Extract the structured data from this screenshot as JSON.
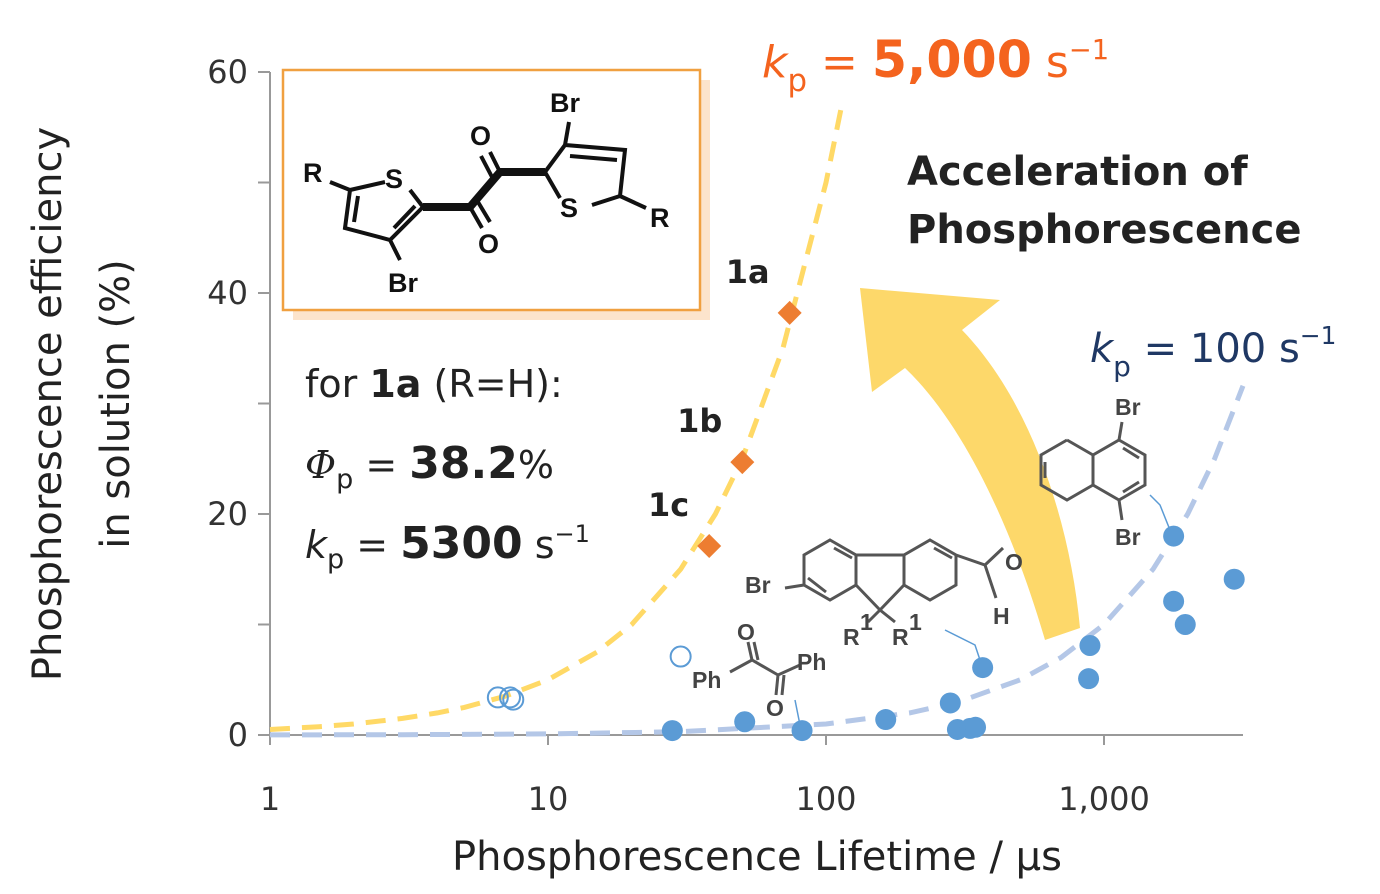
{
  "chart_data": {
    "type": "scatter",
    "xscale": "log",
    "xlabel": "Phosphorescence Lifetime / μs",
    "ylabel": [
      "Phosphorescence efficiency",
      "in solution (%)"
    ],
    "xlim": [
      1,
      3162
    ],
    "ylim": [
      0,
      60
    ],
    "xticks": [
      1,
      10,
      100,
      {
        "value": 1000,
        "label": "1,000"
      }
    ],
    "yticks": [
      0,
      20,
      40,
      60
    ],
    "yminorticks": [
      10,
      30,
      50
    ],
    "series": [
      {
        "kind": "line",
        "style": "dashed",
        "color": "#FFD966",
        "x": [
          1,
          1.5,
          2,
          3,
          4,
          5,
          7,
          10,
          15,
          20,
          30,
          40,
          50,
          70,
          100,
          115
        ],
        "values": [
          0.5,
          0.75,
          1,
          1.5,
          2,
          2.5,
          3.5,
          5,
          7.5,
          10,
          15,
          20,
          25,
          35,
          50,
          57.5
        ]
      },
      {
        "kind": "line",
        "style": "dashed",
        "color": "#B4C7E7",
        "x": [
          1,
          3,
          10,
          30,
          100,
          200,
          300,
          500,
          700,
          1000,
          1500,
          2000,
          2500,
          3162
        ],
        "values": [
          0.01,
          0.03,
          0.1,
          0.3,
          1,
          2,
          3,
          5,
          7,
          10,
          15,
          20,
          25,
          31.6
        ]
      },
      {
        "kind": "points",
        "marker": "open-circle",
        "color": "#5B9BD5",
        "x": [
          30,
          6.6,
          7.3,
          7.5
        ],
        "values": [
          7.1,
          3.4,
          3.4,
          3.2
        ]
      },
      {
        "kind": "points",
        "marker": "circle",
        "color": "#5B9BD5",
        "x": [
          28,
          51,
          82,
          164,
          280,
          297,
          330,
          345,
          366,
          890,
          880,
          1780,
          1780,
          1960,
          2940
        ],
        "values": [
          0.4,
          1.2,
          0.4,
          1.4,
          2.9,
          0.5,
          0.6,
          0.7,
          6.1,
          8.1,
          5.1,
          18.0,
          12.1,
          10.0,
          14.1
        ]
      },
      {
        "kind": "points",
        "marker": "diamond",
        "color": "#ED7D31",
        "x": [
          38,
          50,
          74
        ],
        "values": [
          17.1,
          24.7,
          38.2
        ],
        "point_labels": [
          "1c",
          "1b",
          "1a"
        ]
      }
    ],
    "curve_labels": [
      {
        "color": "#F4631E",
        "parts": [
          "k",
          "p",
          " = ",
          "5,000",
          " s",
          "−1"
        ]
      },
      {
        "color": "#1F3864",
        "parts": [
          "k",
          "p",
          " = ",
          "100",
          " s",
          "−1"
        ]
      }
    ],
    "annotation": [
      "Acceleration of",
      "Phosphorescence"
    ],
    "inset": {
      "line1": [
        "for ",
        "1a",
        " (R=H):"
      ],
      "line2": [
        "Φ",
        "p",
        " = ",
        "38.2",
        "%"
      ],
      "line3": [
        "k",
        "p",
        " = ",
        "5300",
        " s",
        "−1"
      ]
    },
    "structures": {
      "main": [
        "R",
        "S",
        "Br",
        "O",
        "O",
        "Br",
        "S",
        "R"
      ],
      "fluorene": [
        "Br",
        "R",
        "1",
        "R",
        "1",
        "O",
        "H"
      ],
      "benzil": [
        "O",
        "Ph",
        "Ph",
        "O"
      ],
      "naphthalene": [
        "Br",
        "Br"
      ]
    }
  }
}
